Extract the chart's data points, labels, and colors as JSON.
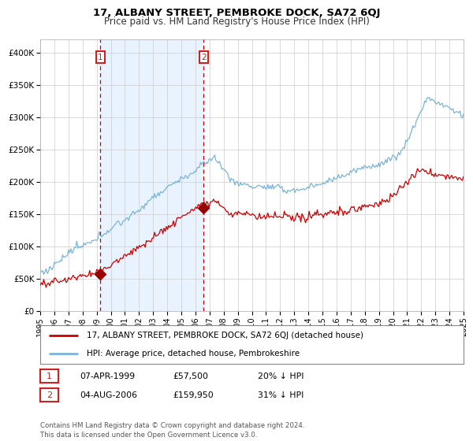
{
  "title": "17, ALBANY STREET, PEMBROKE DOCK, SA72 6QJ",
  "subtitle": "Price paid vs. HM Land Registry's House Price Index (HPI)",
  "legend_line1": "17, ALBANY STREET, PEMBROKE DOCK, SA72 6QJ (detached house)",
  "legend_line2": "HPI: Average price, detached house, Pembrokeshire",
  "annotation1_date": "07-APR-1999",
  "annotation1_price": "£57,500",
  "annotation1_hpi": "20% ↓ HPI",
  "annotation2_date": "04-AUG-2006",
  "annotation2_price": "£159,950",
  "annotation2_hpi": "31% ↓ HPI",
  "footer": "Contains HM Land Registry data © Crown copyright and database right 2024.\nThis data is licensed under the Open Government Licence v3.0.",
  "hpi_color": "#7ab4d8",
  "price_color": "#cc0000",
  "marker_color": "#990000",
  "dashed_color": "#cc0000",
  "shading_color": "#ddeeff",
  "annotation_box_color": "#cc2222",
  "background_color": "#ffffff",
  "grid_color": "#cccccc",
  "ylim_min": 0,
  "ylim_max": 420000,
  "yticks": [
    0,
    50000,
    100000,
    150000,
    200000,
    250000,
    300000,
    350000,
    400000
  ],
  "ytick_labels": [
    "£0",
    "£50K",
    "£100K",
    "£150K",
    "£200K",
    "£250K",
    "£300K",
    "£350K",
    "£400K"
  ],
  "sale1_year": 1999.27,
  "sale1_value": 57500,
  "sale2_year": 2006.59,
  "sale2_value": 159950,
  "figwidth": 6.0,
  "figheight": 5.6,
  "dpi": 100
}
